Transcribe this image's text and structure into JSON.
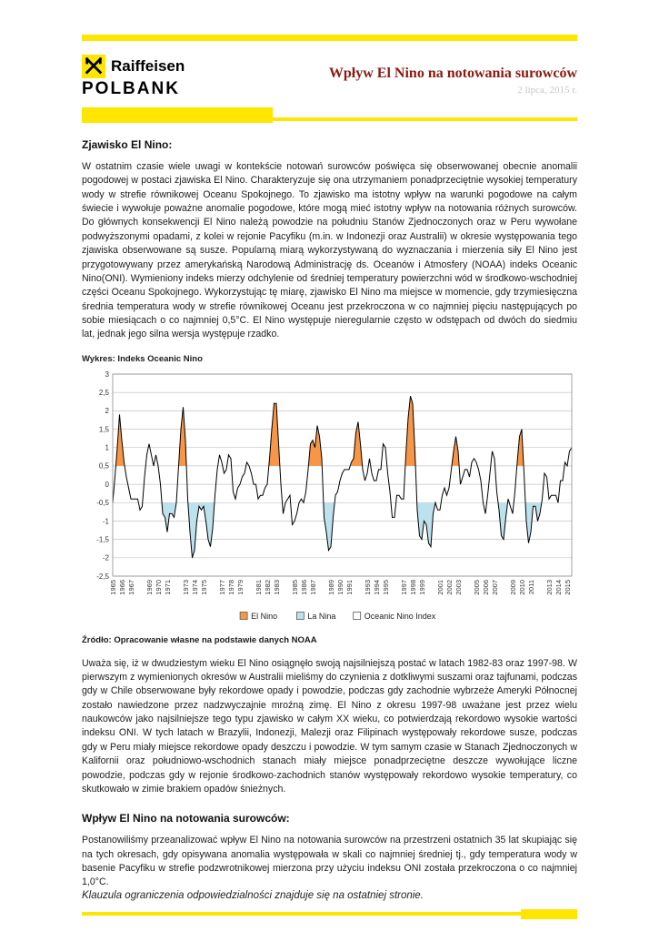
{
  "brand": {
    "line1": "Raiffeisen",
    "line2": "POLBANK"
  },
  "header": {
    "title": "Wpływ El Nino na notowania surowców",
    "date": "2 lipca, 2015 r."
  },
  "section1": {
    "heading": "Zjawisko El Nino:",
    "body": "W ostatnim czasie wiele uwagi w kontekście notowań surowców poświęca się obserwowanej obecnie anomalii pogodowej w postaci zjawiska El Nino. Charakteryzuje się ona utrzymaniem ponadprzeciętnie wysokiej temperatury wody w strefie równikowej Oceanu Spokojnego. To zjawisko ma istotny wpływ na warunki pogodowe na całym świecie i wywołuje poważne anomalie pogodowe, które mogą mieć istotny wpływ na notowania różnych surowców. Do głównych konsekwencji El Nino należą powodzie na południu Stanów Zjednoczonych oraz w Peru wywołane podwyższonymi opadami, z kolei w rejonie Pacyfiku (m.in. w Indonezji oraz Australii) w okresie występowania tego zjawiska obserwowane są susze. Popularną miarą wykorzystywaną do wyznaczania i mierzenia siły El Nino jest przygotowywany przez amerykańską Narodową Administrację ds. Oceanów i Atmosfery (NOAA) indeks Oceanic Nino(ONI). Wymieniony indeks mierzy odchylenie od średniej temperatury powierzchni wód w środkowo-wschodniej części Oceanu Spokojnego. Wykorzystując tę miarę, zjawisko El Nino ma miejsce w momencie, gdy trzymiesięczna średnia temperatura wody w strefie równikowej Oceanu jest przekroczona w co najmniej pięciu następujących po sobie miesiącach o co najmniej 0,5°C. El Nino występuje nieregularnie często w odstępach od dwóch do siedmiu lat, jednak jego silna wersja występuje rzadko."
  },
  "chart": {
    "label": "Wykres: Indeks Oceanic Nino",
    "source": "Źródło: Opracowanie własne na podstawie danych NOAA"
  },
  "section2": {
    "body": "Uważa się, iż w dwudziestym wieku El Nino osiągnęło swoją najsilniejszą postać w latach 1982-83 oraz 1997-98. W pierwszym z wymienionych okresów w Australii mieliśmy do czynienia z dotkliwymi suszami oraz tajfunami, podczas gdy w Chile obserwowane były rekordowe opady i powodzie, podczas gdy zachodnie wybrzeże Ameryki Północnej zostało nawiedzone przez nadzwyczajnie mroźną zimę. El Nino z okresu 1997-98 uważane jest przez wielu naukowców jako najsilniejsze tego typu zjawisko w całym XX wieku, co potwierdzają rekordowo wysokie wartości indeksu ONI. W tych latach w Brazylii, Indonezji, Malezji oraz Filipinach występowały rekordowe susze, podczas gdy w Peru miały miejsce rekordowe opady deszczu i powodzie. W tym samym czasie w Stanach Zjednoczonych w Kalifornii oraz południowo-wschodnich stanach miały miejsce ponadprzeciętne deszcze wywołujące liczne powodzie, podczas gdy w rejonie środkowo-zachodnich stanów występowały rekordowo wysokie temperatury, co skutkowało w zimie brakiem opadów śnieżnych."
  },
  "section3": {
    "heading": "Wpływ El Nino na notowania surowców:",
    "body": "Postanowiliśmy przeanalizować wpływ El Nino na notowania surowców na przestrzeni ostatnich 35 lat skupiając się na tych okresach, gdy opisywana anomalia występowała w skali co najmniej średniej tj., gdy temperatura wody w basenie Pacyfiku w strefie podzwrotnikowej mierzona przy użyciu indeksu ONI została przekroczona o co najmniej 1,0°C."
  },
  "footer": {
    "text": "Klauzula ograniczenia odpowiedzialności znajduje się na ostatniej stronie."
  },
  "colors": {
    "yellow": "#FFE600",
    "title": "#8B1A10",
    "el_nino": "#F79646",
    "la_nina": "#BDE2EE",
    "line": "#000000",
    "grid": "#C3C3C3",
    "border": "#8C8C8C"
  },
  "chart_data": {
    "type": "line",
    "title": "Wykres: Indeks Oceanic Nino",
    "xlabel": "",
    "ylabel": "",
    "x_start": 1965,
    "points_per_year": 4,
    "ylim": [
      -2.5,
      3
    ],
    "ytick_step": 0.5,
    "ytick_labels": [
      "3",
      "2,5",
      "2",
      "1,5",
      "1",
      "0,5",
      "0",
      "-0,5",
      "-1",
      "-1,5",
      "-2",
      "-2,5"
    ],
    "xtick_labels": [
      "1965",
      "1966",
      "1967",
      "1969",
      "1970",
      "1971",
      "1973",
      "1974",
      "1975",
      "1977",
      "1978",
      "1979",
      "1981",
      "1982",
      "1983",
      "1985",
      "1986",
      "1987",
      "1989",
      "1990",
      "1991",
      "1993",
      "1994",
      "1995",
      "1997",
      "1998",
      "1999",
      "2001",
      "2002",
      "2003",
      "2005",
      "2006",
      "2007",
      "2009",
      "2010",
      "2011",
      "2013",
      "2014",
      "2015"
    ],
    "legend": [
      {
        "label": "El Nino",
        "color": "#F79646"
      },
      {
        "label": "La Nina",
        "color": "#BDE2EE"
      },
      {
        "label": "Oceanic Nino Index",
        "color": "#FFFFFF"
      }
    ],
    "legend_position": "bottom-center",
    "grid": true,
    "fill_rule": {
      "el_nino": {
        "baseline": 0.5,
        "min_peak": 1.3
      },
      "la_nina": {
        "baseline": -0.5,
        "min_peak": -1.3
      }
    },
    "values": [
      -0.5,
      0.2,
      1.0,
      1.9,
      1.2,
      0.6,
      0.2,
      -0.1,
      -0.4,
      -0.4,
      -0.4,
      -0.4,
      -0.7,
      -0.6,
      0.2,
      0.8,
      1.1,
      0.8,
      0.5,
      0.8,
      0.5,
      0.0,
      -0.8,
      -0.9,
      -1.3,
      -0.8,
      -0.8,
      -0.9,
      -0.5,
      0.5,
      1.5,
      2.1,
      1.2,
      -0.4,
      -1.3,
      -2.0,
      -1.8,
      -1.0,
      -0.6,
      -0.7,
      -0.6,
      -1.0,
      -1.5,
      -1.7,
      -1.2,
      -0.3,
      0.4,
      0.8,
      0.6,
      0.3,
      0.4,
      0.8,
      0.7,
      -0.2,
      -0.4,
      -0.1,
      0.0,
      0.2,
      0.3,
      0.6,
      0.5,
      0.3,
      0.0,
      0.0,
      -0.4,
      -0.3,
      -0.3,
      -0.1,
      0.0,
      0.7,
      1.5,
      2.2,
      2.2,
      1.1,
      0.0,
      -0.8,
      -0.5,
      -0.4,
      -0.3,
      -1.1,
      -1.0,
      -0.8,
      -0.5,
      -0.4,
      -0.5,
      -0.2,
      0.4,
      1.1,
      1.2,
      1.0,
      1.6,
      1.3,
      0.7,
      -0.9,
      -1.3,
      -1.8,
      -1.7,
      -0.9,
      -0.3,
      -0.2,
      0.1,
      0.3,
      0.4,
      0.4,
      0.4,
      0.6,
      0.7,
      1.4,
      1.7,
      1.1,
      0.4,
      0.1,
      0.3,
      0.7,
      0.3,
      0.1,
      0.1,
      0.4,
      0.4,
      1.1,
      1.0,
      0.3,
      -0.2,
      -0.9,
      -0.9,
      -0.3,
      -0.3,
      -0.4,
      -0.4,
      0.8,
      1.8,
      2.4,
      2.2,
      0.9,
      -0.7,
      -1.4,
      -1.5,
      -1.0,
      -1.1,
      -1.6,
      -1.7,
      -0.8,
      -0.5,
      -0.7,
      -0.7,
      -0.3,
      -0.1,
      -0.3,
      -0.1,
      0.4,
      0.9,
      1.3,
      0.9,
      0.0,
      0.2,
      0.4,
      0.4,
      0.2,
      0.6,
      0.7,
      0.6,
      0.4,
      0.1,
      -0.5,
      -0.8,
      -0.3,
      0.3,
      0.9,
      0.7,
      -0.2,
      -0.7,
      -1.4,
      -1.5,
      -0.9,
      -0.4,
      -0.6,
      -0.8,
      -0.2,
      0.6,
      1.3,
      1.5,
      0.3,
      -1.0,
      -1.6,
      -1.3,
      -0.6,
      -0.6,
      -1.0,
      -0.8,
      -0.4,
      0.3,
      0.2,
      -0.4,
      -0.3,
      -0.3,
      -0.3,
      -0.5,
      0.1,
      0.1,
      0.6,
      0.5,
      0.9,
      1.0
    ]
  }
}
